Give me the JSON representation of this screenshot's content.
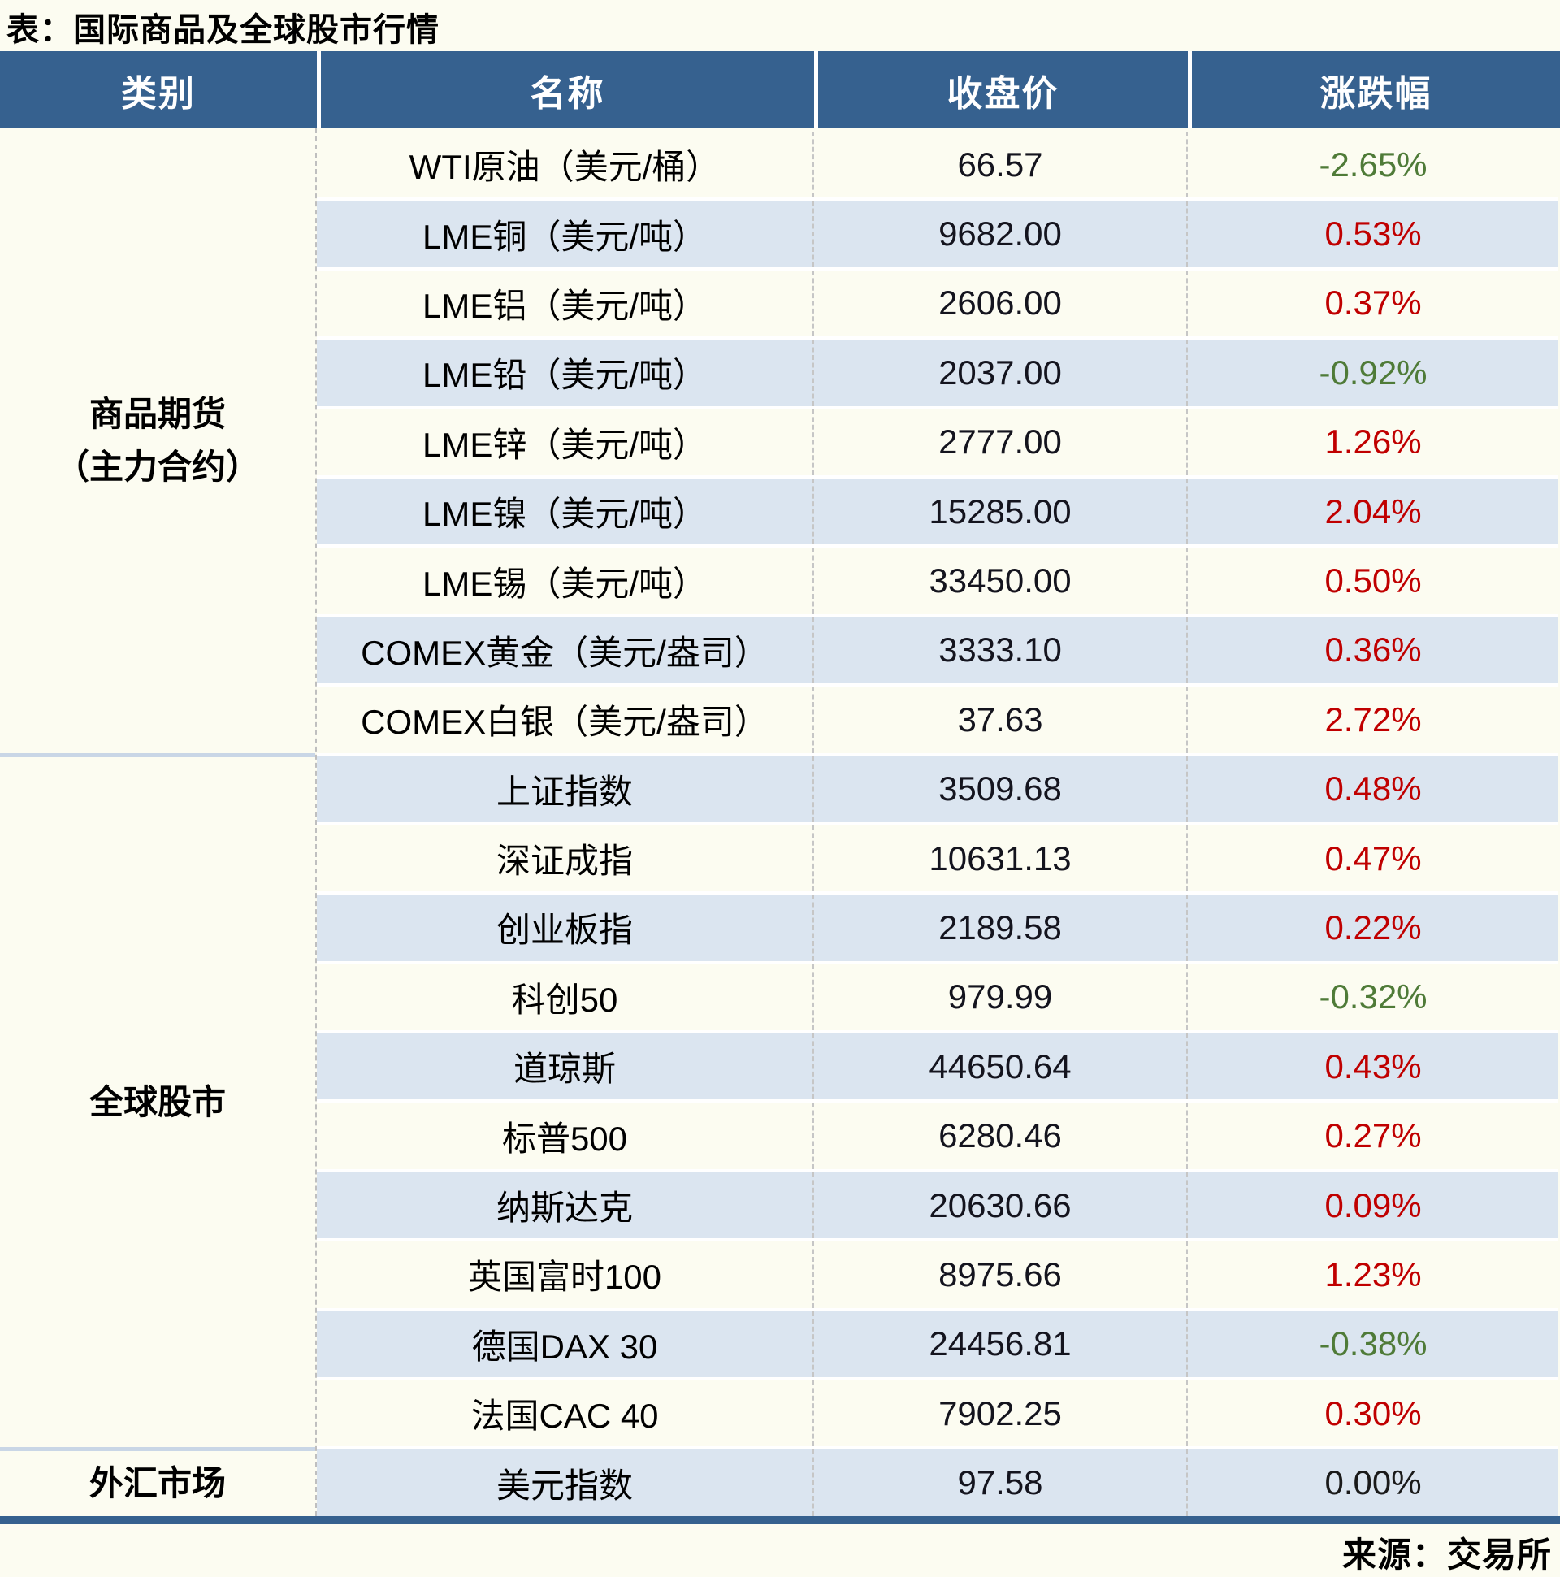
{
  "title": "表：国际商品及全球股市行情",
  "source": "来源：交易所",
  "colors": {
    "header_bg": "#36618f",
    "stripe_row": "#dbe5f0",
    "page_bg": "#fcfcf1",
    "section_divider": "#c9d6e6",
    "bottom_rule": "#36618f",
    "up": "#c00000",
    "down": "#4f7b38",
    "flat": "#1a1a1a"
  },
  "chart_data": {
    "type": "table",
    "title": "国际商品及全球股市行情",
    "columns": [
      "类别",
      "名称",
      "收盘价",
      "涨跌幅"
    ],
    "sections": [
      {
        "category_lines": [
          "商品期货",
          "（主力合约）"
        ],
        "rows": [
          {
            "name": "WTI原油（美元/桶）",
            "close": "66.57",
            "change": "-2.65%",
            "trend": "down"
          },
          {
            "name": "LME铜（美元/吨）",
            "close": "9682.00",
            "change": "0.53%",
            "trend": "up"
          },
          {
            "name": "LME铝（美元/吨）",
            "close": "2606.00",
            "change": "0.37%",
            "trend": "up"
          },
          {
            "name": "LME铅（美元/吨）",
            "close": "2037.00",
            "change": "-0.92%",
            "trend": "down"
          },
          {
            "name": "LME锌（美元/吨）",
            "close": "2777.00",
            "change": "1.26%",
            "trend": "up"
          },
          {
            "name": "LME镍（美元/吨）",
            "close": "15285.00",
            "change": "2.04%",
            "trend": "up"
          },
          {
            "name": "LME锡（美元/吨）",
            "close": "33450.00",
            "change": "0.50%",
            "trend": "up"
          },
          {
            "name": "COMEX黄金（美元/盎司）",
            "close": "3333.10",
            "change": "0.36%",
            "trend": "up"
          },
          {
            "name": "COMEX白银（美元/盎司）",
            "close": "37.63",
            "change": "2.72%",
            "trend": "up"
          }
        ]
      },
      {
        "category_lines": [
          "全球股市"
        ],
        "rows": [
          {
            "name": "上证指数",
            "close": "3509.68",
            "change": "0.48%",
            "trend": "up"
          },
          {
            "name": "深证成指",
            "close": "10631.13",
            "change": "0.47%",
            "trend": "up"
          },
          {
            "name": "创业板指",
            "close": "2189.58",
            "change": "0.22%",
            "trend": "up"
          },
          {
            "name": "科创50",
            "close": "979.99",
            "change": "-0.32%",
            "trend": "down"
          },
          {
            "name": "道琼斯",
            "close": "44650.64",
            "change": "0.43%",
            "trend": "up"
          },
          {
            "name": "标普500",
            "close": "6280.46",
            "change": "0.27%",
            "trend": "up"
          },
          {
            "name": "纳斯达克",
            "close": "20630.66",
            "change": "0.09%",
            "trend": "up"
          },
          {
            "name": "英国富时100",
            "close": "8975.66",
            "change": "1.23%",
            "trend": "up"
          },
          {
            "name": "德国DAX 30",
            "close": "24456.81",
            "change": "-0.38%",
            "trend": "down"
          },
          {
            "name": "法国CAC 40",
            "close": "7902.25",
            "change": "0.30%",
            "trend": "up"
          }
        ]
      },
      {
        "category_lines": [
          "外汇市场"
        ],
        "rows": [
          {
            "name": "美元指数",
            "close": "97.58",
            "change": "0.00%",
            "trend": "flat"
          }
        ]
      }
    ]
  }
}
